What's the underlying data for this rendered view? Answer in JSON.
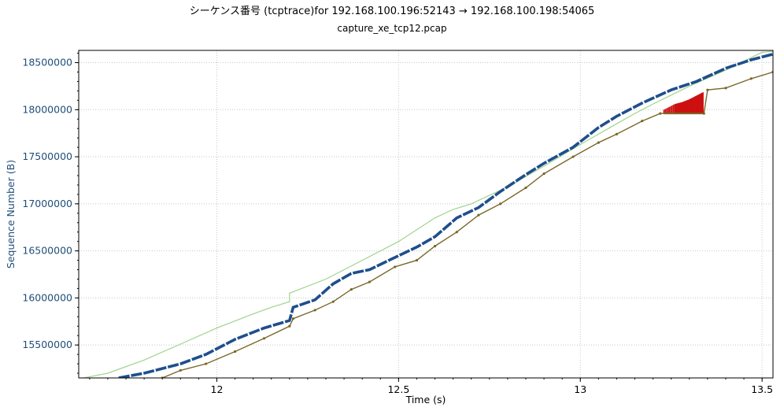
{
  "chart_data": {
    "type": "line",
    "title": "シーケンス番号 (tcptrace)for 192.168.100.196:52143 → 192.168.100.198:54065",
    "subtitle": "capture_xe_tcp12.pcap",
    "xlabel": "Time (s)",
    "ylabel": "Sequence Number (B)",
    "xlim": [
      11.62,
      13.53
    ],
    "ylim": [
      15150000,
      18630000
    ],
    "xticks": [
      12,
      12.5,
      13,
      13.5
    ],
    "xtick_labels": [
      "12",
      "12.5",
      "13",
      "13.5"
    ],
    "yticks": [
      15500000,
      16000000,
      16500000,
      17000000,
      17500000,
      18000000,
      18500000
    ],
    "ytick_labels": [
      "15500000",
      "16000000",
      "16500000",
      "17000000",
      "17500000",
      "18000000",
      "18500000"
    ],
    "grid": true,
    "series": [
      {
        "kind": "window",
        "color": "#9fd38e",
        "points": [
          [
            11.62,
            15140000
          ],
          [
            11.7,
            15200000
          ],
          [
            11.8,
            15340000
          ],
          [
            11.9,
            15510000
          ],
          [
            12.0,
            15680000
          ],
          [
            12.1,
            15830000
          ],
          [
            12.15,
            15900000
          ],
          [
            12.2,
            15960000
          ],
          [
            12.2,
            16050000
          ],
          [
            12.3,
            16200000
          ],
          [
            12.4,
            16400000
          ],
          [
            12.5,
            16600000
          ],
          [
            12.6,
            16850000
          ],
          [
            12.65,
            16940000
          ],
          [
            12.7,
            17000000
          ],
          [
            12.8,
            17180000
          ],
          [
            12.9,
            17400000
          ],
          [
            13.0,
            17630000
          ],
          [
            13.1,
            17850000
          ],
          [
            13.15,
            17960000
          ],
          [
            13.2,
            18060000
          ],
          [
            13.3,
            18250000
          ],
          [
            13.4,
            18420000
          ],
          [
            13.5,
            18610000
          ],
          [
            13.53,
            18620000
          ]
        ]
      },
      {
        "kind": "sequence",
        "color": "#1f4e8c",
        "points": [
          [
            11.73,
            15150000
          ],
          [
            11.8,
            15200000
          ],
          [
            11.9,
            15300000
          ],
          [
            11.97,
            15400000
          ],
          [
            12.05,
            15560000
          ],
          [
            12.13,
            15680000
          ],
          [
            12.2,
            15760000
          ],
          [
            12.21,
            15900000
          ],
          [
            12.27,
            15980000
          ],
          [
            12.32,
            16150000
          ],
          [
            12.37,
            16260000
          ],
          [
            12.42,
            16300000
          ],
          [
            12.49,
            16430000
          ],
          [
            12.55,
            16540000
          ],
          [
            12.6,
            16650000
          ],
          [
            12.66,
            16850000
          ],
          [
            12.72,
            16960000
          ],
          [
            12.78,
            17130000
          ],
          [
            12.85,
            17310000
          ],
          [
            12.9,
            17430000
          ],
          [
            12.98,
            17600000
          ],
          [
            13.05,
            17810000
          ],
          [
            13.1,
            17930000
          ],
          [
            13.17,
            18070000
          ],
          [
            13.25,
            18210000
          ],
          [
            13.32,
            18300000
          ],
          [
            13.4,
            18440000
          ],
          [
            13.47,
            18530000
          ],
          [
            13.53,
            18590000
          ]
        ]
      },
      {
        "kind": "ack",
        "color": "#7a6828",
        "points": [
          [
            11.85,
            15150000
          ],
          [
            11.9,
            15230000
          ],
          [
            11.97,
            15300000
          ],
          [
            12.05,
            15430000
          ],
          [
            12.13,
            15570000
          ],
          [
            12.2,
            15700000
          ],
          [
            12.21,
            15780000
          ],
          [
            12.27,
            15870000
          ],
          [
            12.32,
            15960000
          ],
          [
            12.37,
            16090000
          ],
          [
            12.42,
            16170000
          ],
          [
            12.49,
            16330000
          ],
          [
            12.55,
            16400000
          ],
          [
            12.6,
            16550000
          ],
          [
            12.66,
            16700000
          ],
          [
            12.72,
            16880000
          ],
          [
            12.78,
            17000000
          ],
          [
            12.85,
            17170000
          ],
          [
            12.9,
            17320000
          ],
          [
            12.98,
            17500000
          ],
          [
            13.05,
            17650000
          ],
          [
            13.1,
            17740000
          ],
          [
            13.17,
            17880000
          ],
          [
            13.22,
            17960000
          ],
          [
            13.34,
            17960000
          ],
          [
            13.35,
            18210000
          ],
          [
            13.4,
            18230000
          ],
          [
            13.47,
            18330000
          ],
          [
            13.53,
            18400000
          ]
        ]
      },
      {
        "kind": "sack",
        "color": "#cc1111",
        "points": [
          [
            13.23,
            18000000
          ],
          [
            13.26,
            18060000
          ],
          [
            13.28,
            18080000
          ],
          [
            13.3,
            18110000
          ],
          [
            13.32,
            18150000
          ],
          [
            13.34,
            18190000
          ]
        ]
      }
    ]
  }
}
